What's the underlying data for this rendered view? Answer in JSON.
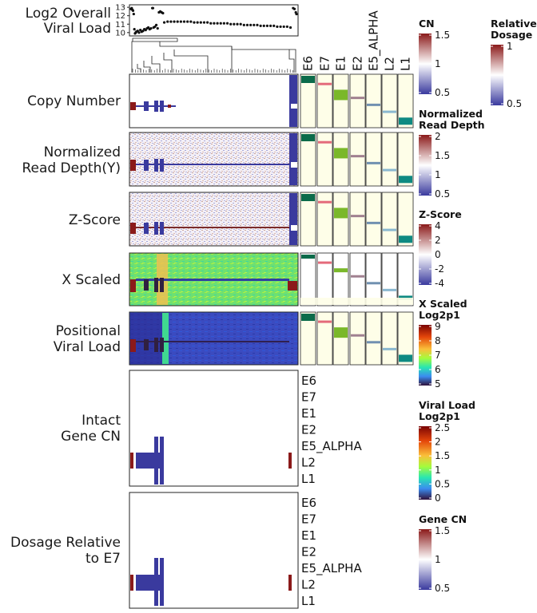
{
  "chart_data": {
    "type": "heatmap",
    "top_annotation": {
      "label_lines": [
        "Log2 Overall",
        "Viral Load"
      ],
      "ticks": [
        10,
        11,
        12,
        13
      ],
      "ylim": [
        9.7,
        13.2
      ],
      "n_samples": 250,
      "points": [
        [
          0,
          12.8
        ],
        [
          1,
          12.9
        ],
        [
          2,
          12.7
        ],
        [
          3,
          12.6
        ],
        [
          4,
          12.2
        ],
        [
          5,
          10.4
        ],
        [
          6,
          9.9
        ],
        [
          7,
          10.0
        ],
        [
          8,
          10.1
        ],
        [
          10,
          10.2
        ],
        [
          12,
          10.0
        ],
        [
          14,
          10.3
        ],
        [
          16,
          10.1
        ],
        [
          18,
          10.2
        ],
        [
          20,
          10.4
        ],
        [
          22,
          10.3
        ],
        [
          24,
          10.5
        ],
        [
          26,
          10.6
        ],
        [
          28,
          10.4
        ],
        [
          30,
          10.5
        ],
        [
          32,
          12.9
        ],
        [
          33,
          12.9
        ],
        [
          34,
          10.6
        ],
        [
          36,
          10.7
        ],
        [
          38,
          10.9
        ],
        [
          40,
          10.5
        ],
        [
          42,
          12.4
        ],
        [
          44,
          12.5
        ],
        [
          46,
          12.4
        ],
        [
          48,
          12.3
        ],
        [
          50,
          11.2
        ],
        [
          55,
          11.3
        ],
        [
          60,
          11.3
        ],
        [
          65,
          11.3
        ],
        [
          70,
          11.3
        ],
        [
          75,
          11.3
        ],
        [
          80,
          11.3
        ],
        [
          85,
          11.3
        ],
        [
          90,
          11.3
        ],
        [
          95,
          11.2
        ],
        [
          100,
          11.2
        ],
        [
          105,
          11.2
        ],
        [
          110,
          11.2
        ],
        [
          115,
          11.2
        ],
        [
          120,
          11.1
        ],
        [
          125,
          11.1
        ],
        [
          130,
          11.1
        ],
        [
          135,
          11.1
        ],
        [
          140,
          11.1
        ],
        [
          145,
          11.1
        ],
        [
          150,
          11.0
        ],
        [
          155,
          11.0
        ],
        [
          160,
          11.0
        ],
        [
          165,
          11.0
        ],
        [
          170,
          10.9
        ],
        [
          175,
          10.9
        ],
        [
          180,
          10.9
        ],
        [
          185,
          10.9
        ],
        [
          190,
          10.9
        ],
        [
          195,
          10.8
        ],
        [
          200,
          10.8
        ],
        [
          205,
          10.8
        ],
        [
          210,
          10.8
        ],
        [
          215,
          10.8
        ],
        [
          220,
          10.7
        ],
        [
          225,
          10.7
        ],
        [
          230,
          10.7
        ],
        [
          235,
          10.7
        ],
        [
          240,
          10.6
        ],
        [
          244,
          12.9
        ],
        [
          246,
          12.8
        ],
        [
          248,
          12.4
        ],
        [
          249,
          12.2
        ]
      ]
    },
    "rows": [
      {
        "label_lines": [
          "Copy Number"
        ]
      },
      {
        "label_lines": [
          "Normalized",
          "Read Depth(Y)"
        ]
      },
      {
        "label_lines": [
          "Z-Score"
        ]
      },
      {
        "label_lines": [
          "X Scaled"
        ]
      },
      {
        "label_lines": [
          "Positional",
          "Viral Load"
        ]
      },
      {
        "label_lines": [
          "Intact",
          "Gene CN"
        ]
      },
      {
        "label_lines": [
          "Dosage Relative",
          "to E7"
        ]
      }
    ],
    "genes": [
      "E6",
      "E7",
      "E1",
      "E2",
      "E5_ALPHA",
      "L2",
      "L1"
    ],
    "legends": [
      {
        "title": [
          "CN"
        ],
        "ticks": [
          "1.5",
          "1",
          "0.5"
        ]
      },
      {
        "title": [
          "Relative",
          "Dosage"
        ],
        "ticks": [
          "1",
          "0.5"
        ]
      },
      {
        "title": [
          "Normalized",
          "Read Depth"
        ],
        "ticks": [
          "2",
          "1.5",
          "1",
          "0.5"
        ]
      },
      {
        "title": [
          "Z-Score"
        ],
        "ticks": [
          "4",
          "2",
          "0",
          "-2",
          "-4"
        ]
      },
      {
        "title": [
          "X Scaled",
          "Log2p1"
        ],
        "ticks": [
          "9",
          "8",
          "7",
          "6",
          "5"
        ]
      },
      {
        "title": [
          "Viral Load",
          "Log2p1"
        ],
        "ticks": [
          "2.5",
          "2",
          "1.5",
          "1",
          "0.5",
          "0"
        ]
      },
      {
        "title": [
          "Gene CN"
        ],
        "ticks": [
          "1.5",
          "1",
          "0.5"
        ]
      }
    ],
    "colors": {
      "blue_low": "#3a3a9e",
      "white_mid": "#ffffff",
      "red_high": "#8b1a1a",
      "gene_bg": "#fefee8",
      "E6": "#0b6b4a",
      "E7": "#e46a7a",
      "E1": "#7ab82a",
      "E2": "#a08090",
      "E5_ALPHA": "#7090b0",
      "L2": "#8ab8d0",
      "L1": "#0e8a82"
    }
  }
}
